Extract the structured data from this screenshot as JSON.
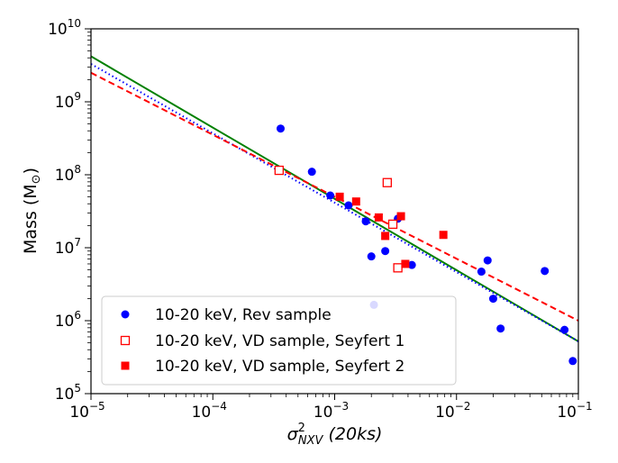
{
  "chart_data": {
    "type": "scatter",
    "xlabel": {
      "base": "σ",
      "sup": "2",
      "sub": "NXV",
      "suffix": " (20ks)"
    },
    "ylabel": {
      "main": "Mass (M",
      "sub": "⊙",
      "close": ")"
    },
    "x_scale": "log",
    "y_scale": "log",
    "xlim": [
      1e-05,
      0.1
    ],
    "ylim": [
      100000,
      10000000000
    ],
    "x_ticks": [
      {
        "value": 1e-05,
        "base": "10",
        "exp": "−5"
      },
      {
        "value": 0.0001,
        "base": "10",
        "exp": "−4"
      },
      {
        "value": 0.001,
        "base": "10",
        "exp": "−3"
      },
      {
        "value": 0.01,
        "base": "10",
        "exp": "−2"
      },
      {
        "value": 0.1,
        "base": "10",
        "exp": "−1"
      }
    ],
    "y_ticks": [
      {
        "value": 100000,
        "base": "10",
        "exp": "5"
      },
      {
        "value": 1000000,
        "base": "10",
        "exp": "6"
      },
      {
        "value": 10000000,
        "base": "10",
        "exp": "7"
      },
      {
        "value": 100000000,
        "base": "10",
        "exp": "8"
      },
      {
        "value": 1000000000,
        "base": "10",
        "exp": "9"
      },
      {
        "value": 10000000000,
        "base": "10",
        "exp": "10"
      }
    ],
    "grid": false,
    "legend_position": "bottom-left",
    "series": [
      {
        "name": "10-20 keV, Rev sample",
        "marker": "circle",
        "color": "#0000ff",
        "points": [
          [
            0.00036,
            430000000
          ],
          [
            0.00065,
            110000000
          ],
          [
            0.00092,
            52000000
          ],
          [
            0.0013,
            38000000
          ],
          [
            0.0018,
            23000000
          ],
          [
            0.002,
            7600000
          ],
          [
            0.0021,
            1650000
          ],
          [
            0.0026,
            9000000
          ],
          [
            0.0033,
            25000000
          ],
          [
            0.0043,
            5800000
          ],
          [
            0.016,
            4700000
          ],
          [
            0.018,
            6700000
          ],
          [
            0.02,
            2000000
          ],
          [
            0.023,
            780000
          ],
          [
            0.053,
            4800000
          ],
          [
            0.077,
            750000
          ],
          [
            0.09,
            280000
          ]
        ]
      },
      {
        "name": "10-20 keV, VD sample, Seyfert 1",
        "marker": "square-open",
        "color": "#ff0000",
        "points": [
          [
            0.00035,
            115000000
          ],
          [
            0.0027,
            78000000
          ],
          [
            0.003,
            21000000
          ],
          [
            0.0033,
            5300000
          ]
        ]
      },
      {
        "name": "10-20 keV, VD sample, Seyfert 2",
        "marker": "square-filled",
        "color": "#ff0000",
        "points": [
          [
            0.0011,
            50000000
          ],
          [
            0.0015,
            43000000
          ],
          [
            0.0023,
            26000000
          ],
          [
            0.0026,
            14500000
          ],
          [
            0.0035,
            27000000
          ],
          [
            0.0038,
            6000000
          ],
          [
            0.0078,
            15000000
          ]
        ]
      }
    ],
    "fit_lines": [
      {
        "style": "solid",
        "color": "#008000",
        "points": [
          [
            1e-05,
            4200000000
          ],
          [
            0.1,
            520000
          ]
        ]
      },
      {
        "style": "dotted",
        "color": "#0000ff",
        "points": [
          [
            1e-05,
            3300000000
          ],
          [
            0.1,
            520000
          ]
        ]
      },
      {
        "style": "dashed",
        "color": "#ff0000",
        "points": [
          [
            1e-05,
            2500000000
          ],
          [
            0.1,
            1000000
          ]
        ]
      }
    ]
  }
}
